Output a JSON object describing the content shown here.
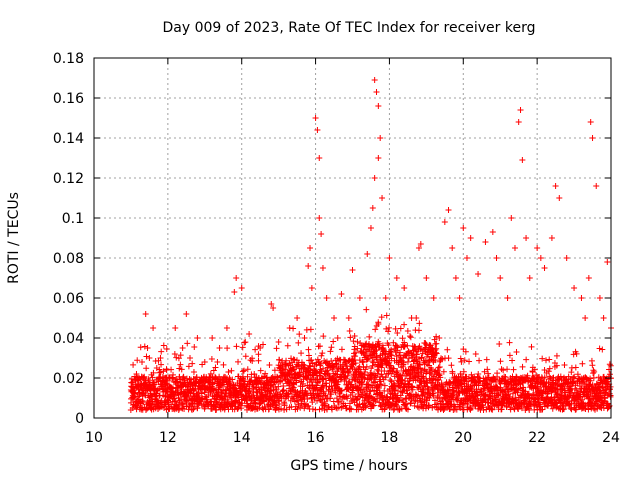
{
  "chart_data": {
    "type": "scatter",
    "title": "Day 009 of 2023, Rate Of TEC Index for receiver kerg",
    "xlabel": "GPS time / hours",
    "ylabel": "ROTI / TECUs",
    "xlim": [
      10,
      24
    ],
    "ylim": [
      0,
      0.18
    ],
    "xticks": [
      10,
      12,
      14,
      16,
      18,
      20,
      22,
      24
    ],
    "yticks": [
      0,
      0.02,
      0.04,
      0.06,
      0.08,
      0.1,
      0.12,
      0.14,
      0.16,
      0.18
    ],
    "grid": true,
    "marker": "+",
    "color": "#ff0000",
    "series": [
      {
        "x": [
          11.0,
          11.05,
          11.1,
          11.15,
          11.2,
          11.3,
          11.35,
          11.4,
          11.45,
          11.5,
          11.6,
          11.7,
          11.8,
          11.9,
          12.0,
          12.2,
          12.4,
          12.5,
          12.6,
          12.8,
          13.0,
          13.2,
          13.4,
          13.6,
          13.8,
          13.85,
          14.0,
          14.2,
          14.5,
          14.8,
          14.85,
          15.0,
          15.3,
          15.5,
          15.7,
          15.8,
          15.85,
          15.9,
          16.0,
          16.05,
          16.1,
          16.1,
          16.15,
          16.2,
          16.3,
          16.5,
          16.6,
          16.7,
          16.9,
          17.0,
          17.2,
          17.4,
          17.5,
          17.55,
          17.6,
          17.6,
          17.65,
          17.7,
          17.7,
          17.75,
          17.8,
          17.9,
          18.0,
          18.2,
          18.4,
          18.6,
          18.8,
          18.85,
          19.0,
          19.2,
          19.35,
          19.5,
          19.6,
          19.7,
          19.8,
          19.9,
          20.0,
          20.1,
          20.2,
          20.4,
          20.6,
          20.8,
          20.9,
          21.0,
          21.2,
          21.3,
          21.4,
          21.5,
          21.55,
          21.6,
          21.7,
          21.8,
          22.0,
          22.1,
          22.2,
          22.4,
          22.5,
          22.6,
          22.8,
          23.0,
          23.2,
          23.3,
          23.4,
          23.45,
          23.5,
          23.6,
          23.7,
          23.8,
          23.9,
          24.0
        ],
        "y": [
          0.014,
          0.018,
          0.012,
          0.022,
          0.016,
          0.028,
          0.02,
          0.052,
          0.035,
          0.03,
          0.045,
          0.025,
          0.03,
          0.02,
          0.015,
          0.045,
          0.035,
          0.052,
          0.03,
          0.04,
          0.028,
          0.04,
          0.035,
          0.045,
          0.063,
          0.07,
          0.065,
          0.042,
          0.035,
          0.057,
          0.055,
          0.038,
          0.045,
          0.05,
          0.04,
          0.076,
          0.085,
          0.065,
          0.15,
          0.144,
          0.13,
          0.1,
          0.092,
          0.075,
          0.06,
          0.05,
          0.04,
          0.062,
          0.05,
          0.074,
          0.06,
          0.082,
          0.095,
          0.105,
          0.169,
          0.12,
          0.163,
          0.156,
          0.13,
          0.14,
          0.11,
          0.06,
          0.08,
          0.07,
          0.065,
          0.05,
          0.085,
          0.087,
          0.07,
          0.06,
          0.04,
          0.098,
          0.104,
          0.085,
          0.07,
          0.06,
          0.095,
          0.08,
          0.09,
          0.072,
          0.088,
          0.093,
          0.08,
          0.07,
          0.06,
          0.1,
          0.085,
          0.148,
          0.154,
          0.129,
          0.09,
          0.07,
          0.085,
          0.08,
          0.075,
          0.09,
          0.116,
          0.11,
          0.08,
          0.065,
          0.06,
          0.05,
          0.07,
          0.148,
          0.14,
          0.116,
          0.06,
          0.05,
          0.078,
          0.045
        ]
      }
    ]
  }
}
